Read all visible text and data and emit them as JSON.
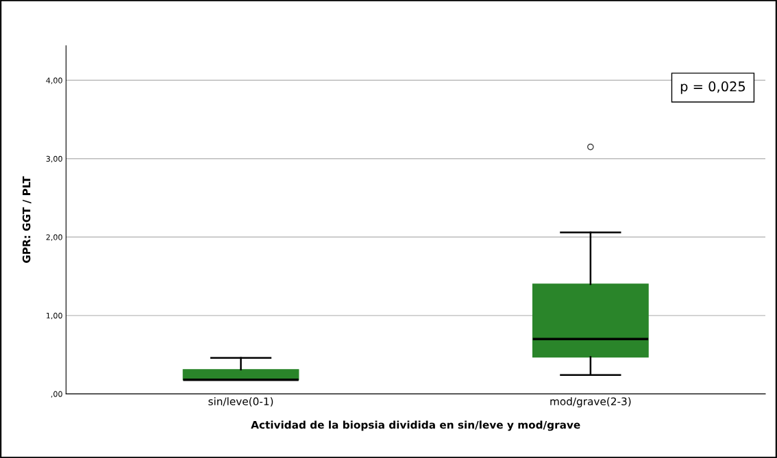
{
  "chart_data": {
    "type": "box",
    "xlabel": "Actividad de la biopsia dividida en sin/leve y mod/grave",
    "ylabel": "GPR: GGT / PLT",
    "categories": [
      "sin/leve(0-1)",
      "mod/grave(2-3)"
    ],
    "boxes": [
      {
        "low": 0.18,
        "q1": 0.18,
        "median": 0.18,
        "q3": 0.31,
        "high": 0.46
      },
      {
        "low": 0.24,
        "q1": 0.47,
        "median": 0.7,
        "q3": 1.4,
        "high": 2.06,
        "outliers": [
          3.15
        ]
      }
    ],
    "color": "#2a852a",
    "ylim": [
      0,
      4.44
    ],
    "yticks": [
      {
        "value": 0,
        "label": ",00"
      },
      {
        "value": 1,
        "label": "1,00"
      },
      {
        "value": 2,
        "label": "2,00"
      },
      {
        "value": 3,
        "label": "3,00"
      },
      {
        "value": 4,
        "label": "4,00"
      }
    ],
    "grid": "y",
    "annotations": [
      "p = 0,025"
    ]
  }
}
